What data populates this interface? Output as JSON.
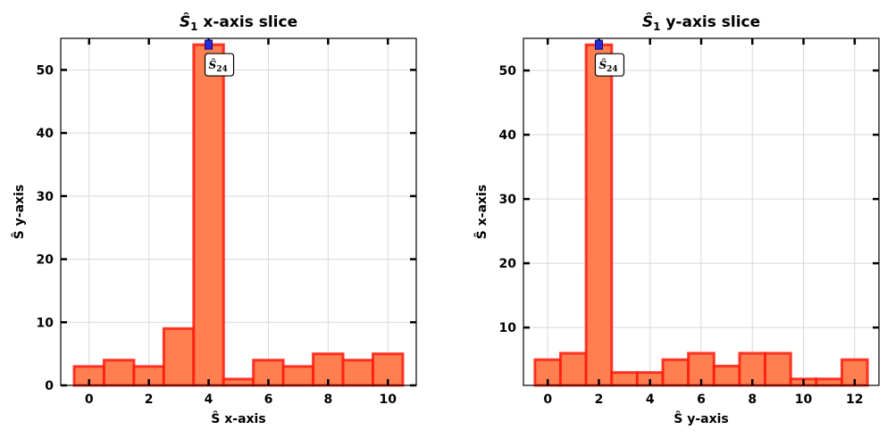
{
  "chart_data": [
    {
      "type": "bar",
      "title": "Ŝ₁ x-axis slice",
      "title_main": "S",
      "title_sub": "1",
      "title_rest": " x-axis slice",
      "xlabel": "Ŝ x-axis",
      "ylabel": "Ŝ y-axis",
      "x": [
        0,
        1,
        2,
        3,
        4,
        5,
        6,
        7,
        8,
        9,
        10
      ],
      "values": [
        3,
        4,
        3,
        9,
        54,
        1,
        4,
        3,
        5,
        4,
        5
      ],
      "xlim": [
        -0.95,
        10.95
      ],
      "ylim": [
        0,
        55
      ],
      "xticks": [
        0,
        2,
        4,
        6,
        8,
        10
      ],
      "yticks": [
        0,
        10,
        20,
        30,
        40,
        50
      ],
      "annotation": {
        "text": "Ŝ24",
        "main": "S",
        "sub": "24",
        "x": 4,
        "y": 54
      },
      "grid": true
    },
    {
      "type": "bar",
      "title": "Ŝ₁ y-axis slice",
      "title_main": "S",
      "title_sub": "1",
      "title_rest": " y-axis slice",
      "xlabel": "Ŝ y-axis",
      "ylabel": "Ŝ x-axis",
      "x": [
        0,
        1,
        2,
        3,
        4,
        5,
        6,
        7,
        8,
        9,
        10,
        11,
        12
      ],
      "values": [
        5,
        6,
        54,
        3,
        3,
        5,
        6,
        4,
        6,
        6,
        2,
        2,
        5
      ],
      "xlim": [
        -0.95,
        12.95
      ],
      "ylim": [
        1,
        55
      ],
      "xticks": [
        0,
        2,
        4,
        6,
        8,
        10,
        12
      ],
      "yticks": [
        10,
        20,
        30,
        40,
        50
      ],
      "annotation": {
        "text": "Ŝ24",
        "main": "S",
        "sub": "24",
        "x": 2,
        "y": 54
      },
      "grid": true
    }
  ],
  "colors": {
    "bar_fill": "#ff7f50",
    "bar_edge": "#ff1a0d",
    "peak_marker": "#2b2bd6"
  }
}
